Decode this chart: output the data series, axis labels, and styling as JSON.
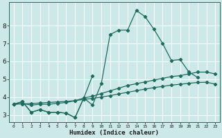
{
  "xlabel": "Humidex (Indice chaleur)",
  "xlim": [
    -0.5,
    23.5
  ],
  "ylim": [
    2.6,
    9.3
  ],
  "xtick_labels": [
    "0",
    "1",
    "2",
    "3",
    "4",
    "5",
    "6",
    "7",
    "8",
    "9",
    "10",
    "11",
    "12",
    "13",
    "14",
    "15",
    "16",
    "17",
    "18",
    "19",
    "20",
    "21",
    "22",
    "23"
  ],
  "ytick_values": [
    3,
    4,
    5,
    6,
    7,
    8
  ],
  "background_color": "#cce8e8",
  "grid_color": "#ffffff",
  "line_color": "#1f6b5e",
  "lines": [
    {
      "x": [
        0,
        1,
        2,
        3,
        4,
        5,
        6,
        7,
        8,
        9,
        10,
        11,
        12,
        13,
        14,
        15,
        16,
        17,
        18,
        19,
        20,
        21
      ],
      "y": [
        3.6,
        3.75,
        3.15,
        3.3,
        3.15,
        3.15,
        3.1,
        2.85,
        3.95,
        3.55,
        4.75,
        7.5,
        7.75,
        7.75,
        8.85,
        8.5,
        7.8,
        7.0,
        6.05,
        6.1,
        5.4,
        5.1
      ]
    },
    {
      "x": [
        0,
        1,
        2,
        3,
        4,
        5,
        6,
        7,
        8,
        9
      ],
      "y": [
        3.6,
        3.75,
        3.15,
        3.3,
        3.15,
        3.15,
        3.1,
        2.85,
        3.95,
        5.2
      ]
    },
    {
      "x": [
        0,
        1,
        2,
        3,
        4,
        5,
        6,
        7,
        8,
        9,
        10,
        11,
        12,
        13,
        14,
        15,
        16,
        17,
        18,
        19,
        20,
        21,
        22,
        23
      ],
      "y": [
        3.6,
        3.65,
        3.55,
        3.6,
        3.6,
        3.65,
        3.7,
        3.8,
        3.95,
        4.05,
        4.2,
        4.35,
        4.5,
        4.65,
        4.75,
        4.85,
        4.95,
        5.05,
        5.15,
        5.2,
        5.3,
        5.4,
        5.4,
        5.3
      ]
    },
    {
      "x": [
        0,
        1,
        2,
        3,
        4,
        5,
        6,
        7,
        8,
        9,
        10,
        11,
        12,
        13,
        14,
        15,
        16,
        17,
        18,
        19,
        20,
        21,
        22,
        23
      ],
      "y": [
        3.6,
        3.62,
        3.64,
        3.67,
        3.7,
        3.73,
        3.76,
        3.8,
        3.87,
        3.93,
        4.0,
        4.08,
        4.18,
        4.27,
        4.36,
        4.45,
        4.53,
        4.6,
        4.67,
        4.72,
        4.77,
        4.82,
        4.83,
        4.73
      ]
    }
  ]
}
